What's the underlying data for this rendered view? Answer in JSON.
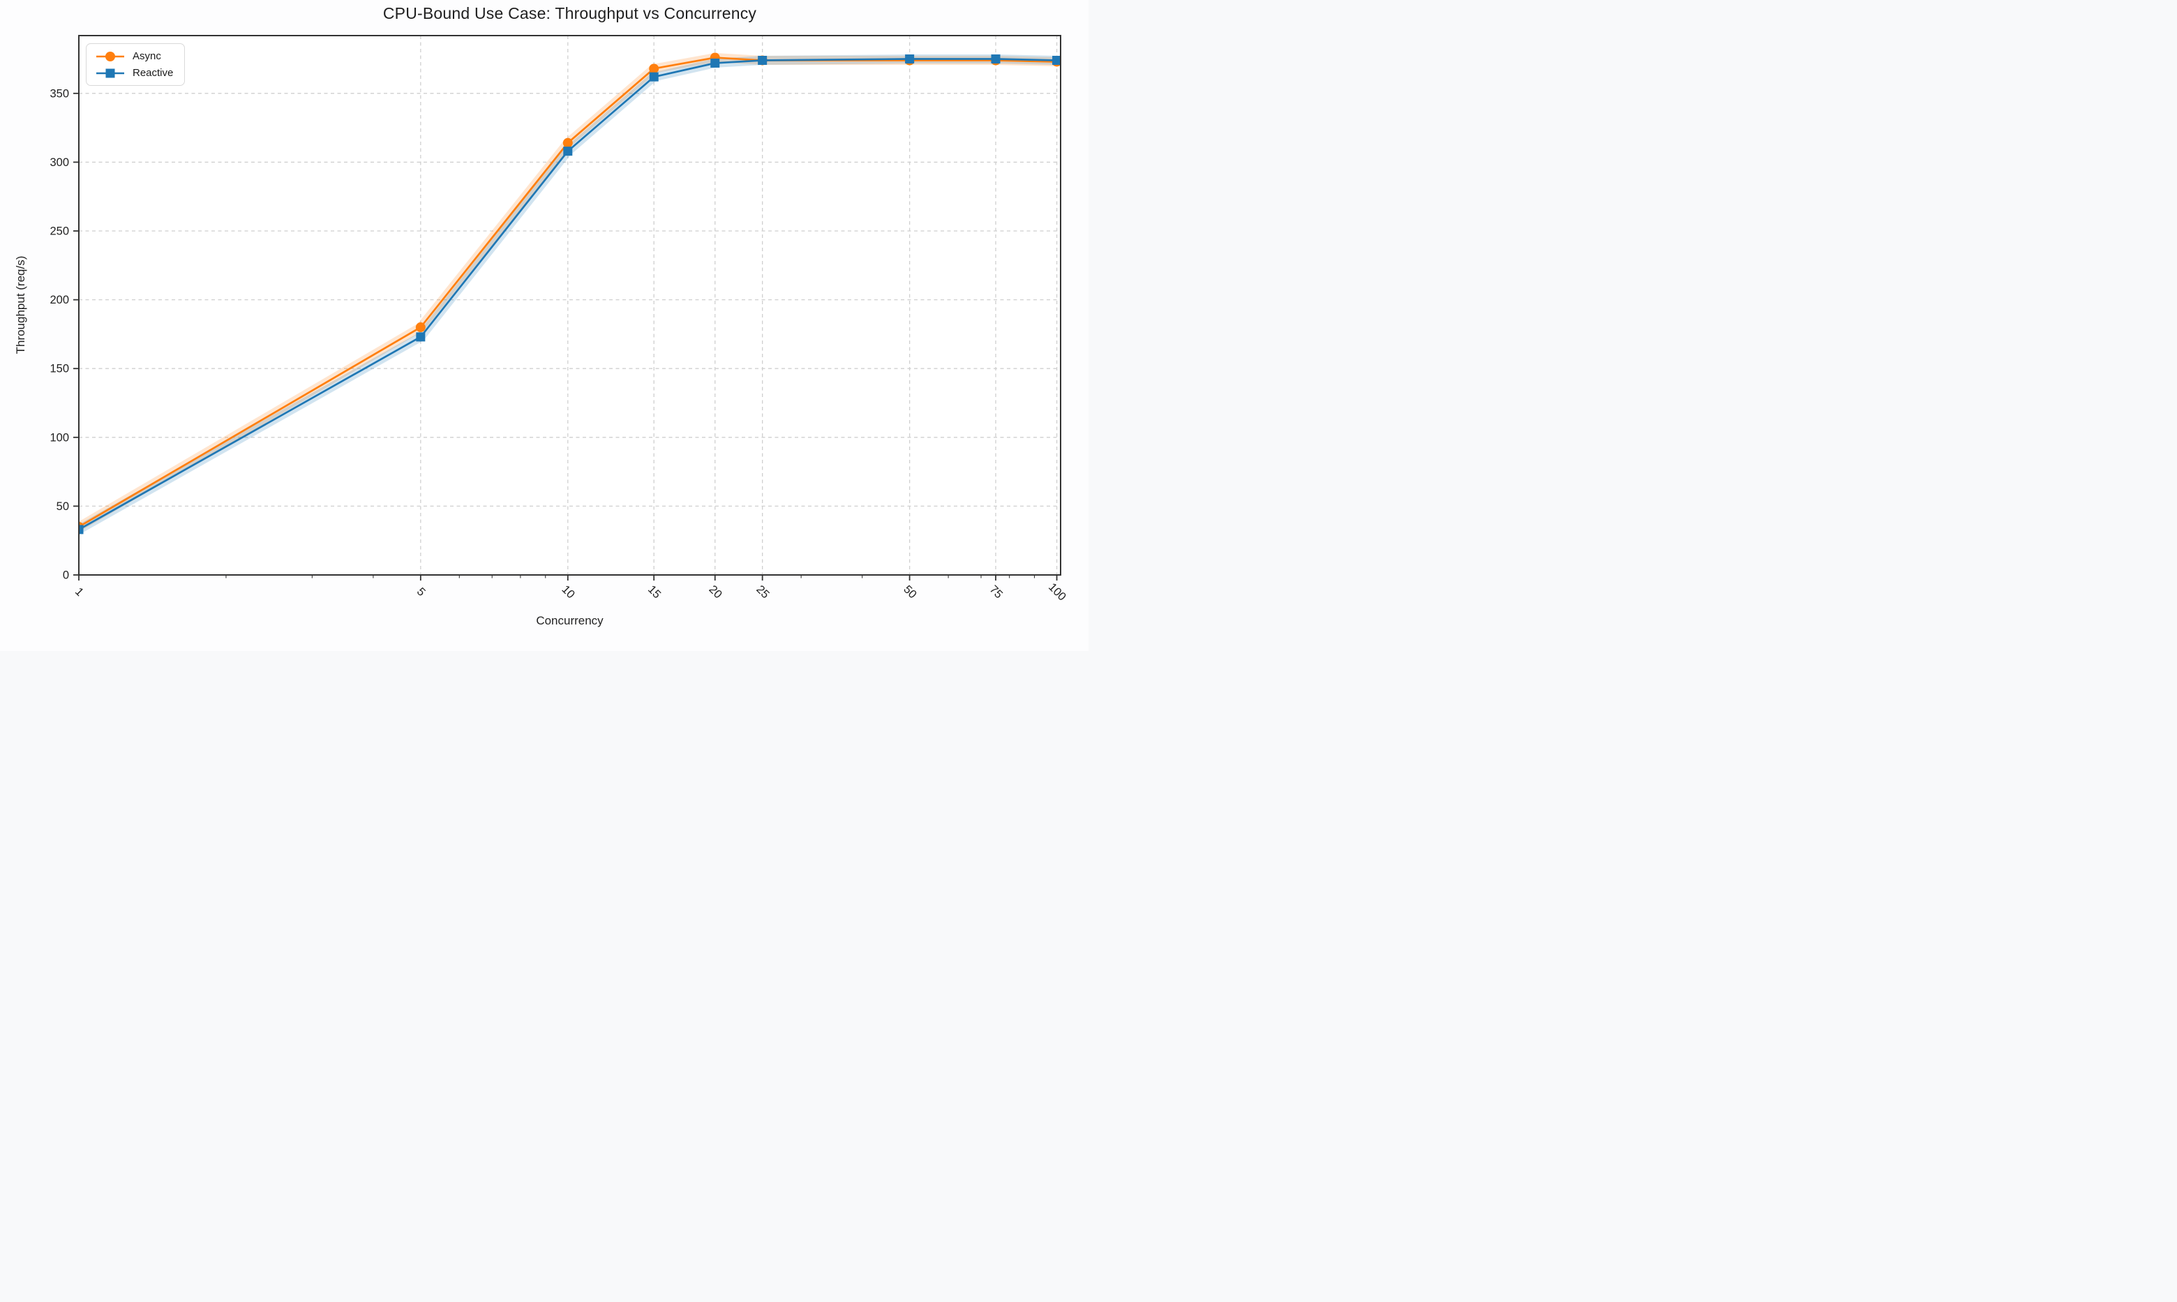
{
  "page": {
    "background": "#f8f9fa"
  },
  "chart_data": {
    "type": "line",
    "title": "CPU-Bound Use Case: Throughput vs Concurrency",
    "xlabel": "Concurrency",
    "ylabel": "Throughput (req/s)",
    "x_scale": "log",
    "x": [
      1,
      5,
      10,
      15,
      20,
      25,
      50,
      75,
      100
    ],
    "x_tick_labels": [
      "1",
      "5",
      "10",
      "15",
      "20",
      "25",
      "50",
      "75",
      "100"
    ],
    "x_minor_ticks": [
      2,
      3,
      4,
      6,
      7,
      8,
      9,
      30,
      40,
      60,
      70,
      80,
      90
    ],
    "y_ticks": [
      0,
      50,
      100,
      150,
      200,
      250,
      300,
      350
    ],
    "ylim": [
      0,
      392
    ],
    "grid": "dashed",
    "legend": {
      "position": "upper-left"
    },
    "series": [
      {
        "name": "Async",
        "color": "#ff7f0e",
        "marker": "circle",
        "values": [
          35,
          180,
          314,
          368,
          376,
          374,
          374,
          374,
          373
        ]
      },
      {
        "name": "Reactive",
        "color": "#1f77b4",
        "marker": "square",
        "values": [
          33,
          173,
          308,
          362,
          372,
          374,
          375,
          375,
          374
        ]
      }
    ]
  }
}
